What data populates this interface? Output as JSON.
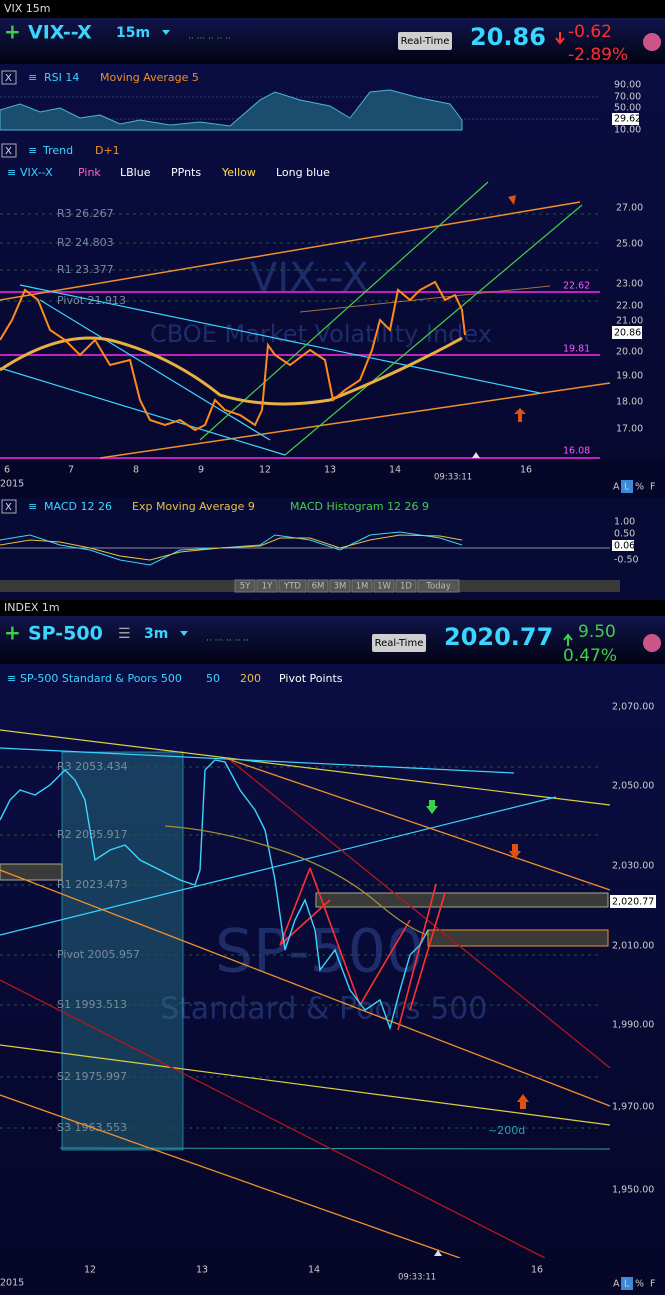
{
  "top": {
    "window_label": "VIX 15m",
    "symbol": "VIX--X",
    "interval": "15m",
    "realtime": "Real-Time",
    "price": "20.86",
    "change": "-0.62",
    "change_pct": "-2.89%",
    "rsi": {
      "labels": [
        "RSI 14",
        "Moving Average 5"
      ],
      "axis": [
        "90.00",
        "70.00",
        "50.00",
        "29.62",
        "10.00"
      ]
    },
    "trend": [
      "Trend",
      "D+1"
    ],
    "legend": [
      "VIX--X",
      "Pink",
      "LBlue",
      "PPnts",
      "Yellow",
      "Long blue"
    ],
    "axis": [
      "27.00",
      "25.00",
      "23.00",
      "22.00",
      "21.00",
      "20.00",
      "19.00",
      "18.00",
      "17.00"
    ],
    "levels": [
      "22.62",
      "19.81",
      "16.08",
      "20.86"
    ],
    "pivots": [
      "R3 26.267",
      "R2 24.803",
      "R1 23.377",
      "Pivot 21.913"
    ],
    "watermark": [
      "VIX--X",
      "CBOE Market Volatility Index"
    ],
    "xaxis": [
      "6",
      "7",
      "8",
      "9",
      "12",
      "13",
      "14",
      "16"
    ],
    "year": "2015",
    "time": "09:33:11",
    "macd": {
      "labels": [
        "MACD 12 26",
        "Exp Moving Average 9",
        "MACD Histogram 12 26 9"
      ],
      "axis": [
        "1.00",
        "0.50",
        "0.06",
        "-0.50"
      ]
    },
    "ranges": [
      "5Y",
      "1Y",
      "YTD",
      "6M",
      "3M",
      "1M",
      "1W",
      "1D",
      "Today"
    ],
    "scale_buttons": [
      "A",
      "L",
      "%",
      "F"
    ]
  },
  "bottom": {
    "window_label": "INDEX 1m",
    "symbol": "SP-500",
    "interval": "3m",
    "realtime": "Real-Time",
    "price": "2020.77",
    "change": "9.50",
    "change_pct": "0.47%",
    "legend": [
      "SP-500 Standard & Poors 500",
      "50",
      "200",
      "Pivot Points"
    ],
    "axis": [
      "2,070.00",
      "2,050.00",
      "2,030.00",
      "2,020.77",
      "2,010.00",
      "1,990.00",
      "1,970.00",
      "1,950.00"
    ],
    "pivots": [
      "R3 2053.434",
      "R2 2035.917",
      "R1 2023.473",
      "Pivot 2005.957",
      "S1 1993.513",
      "S2 1975.997",
      "S3 1963.553"
    ],
    "annotation": "~200d",
    "watermark": [
      "SP-500",
      "Standard & Poors 500"
    ],
    "xaxis": [
      "12",
      "13",
      "14",
      "16"
    ],
    "year": "2015",
    "time": "09:33:11",
    "scale_buttons": [
      "A",
      "L",
      "%",
      "F"
    ]
  }
}
